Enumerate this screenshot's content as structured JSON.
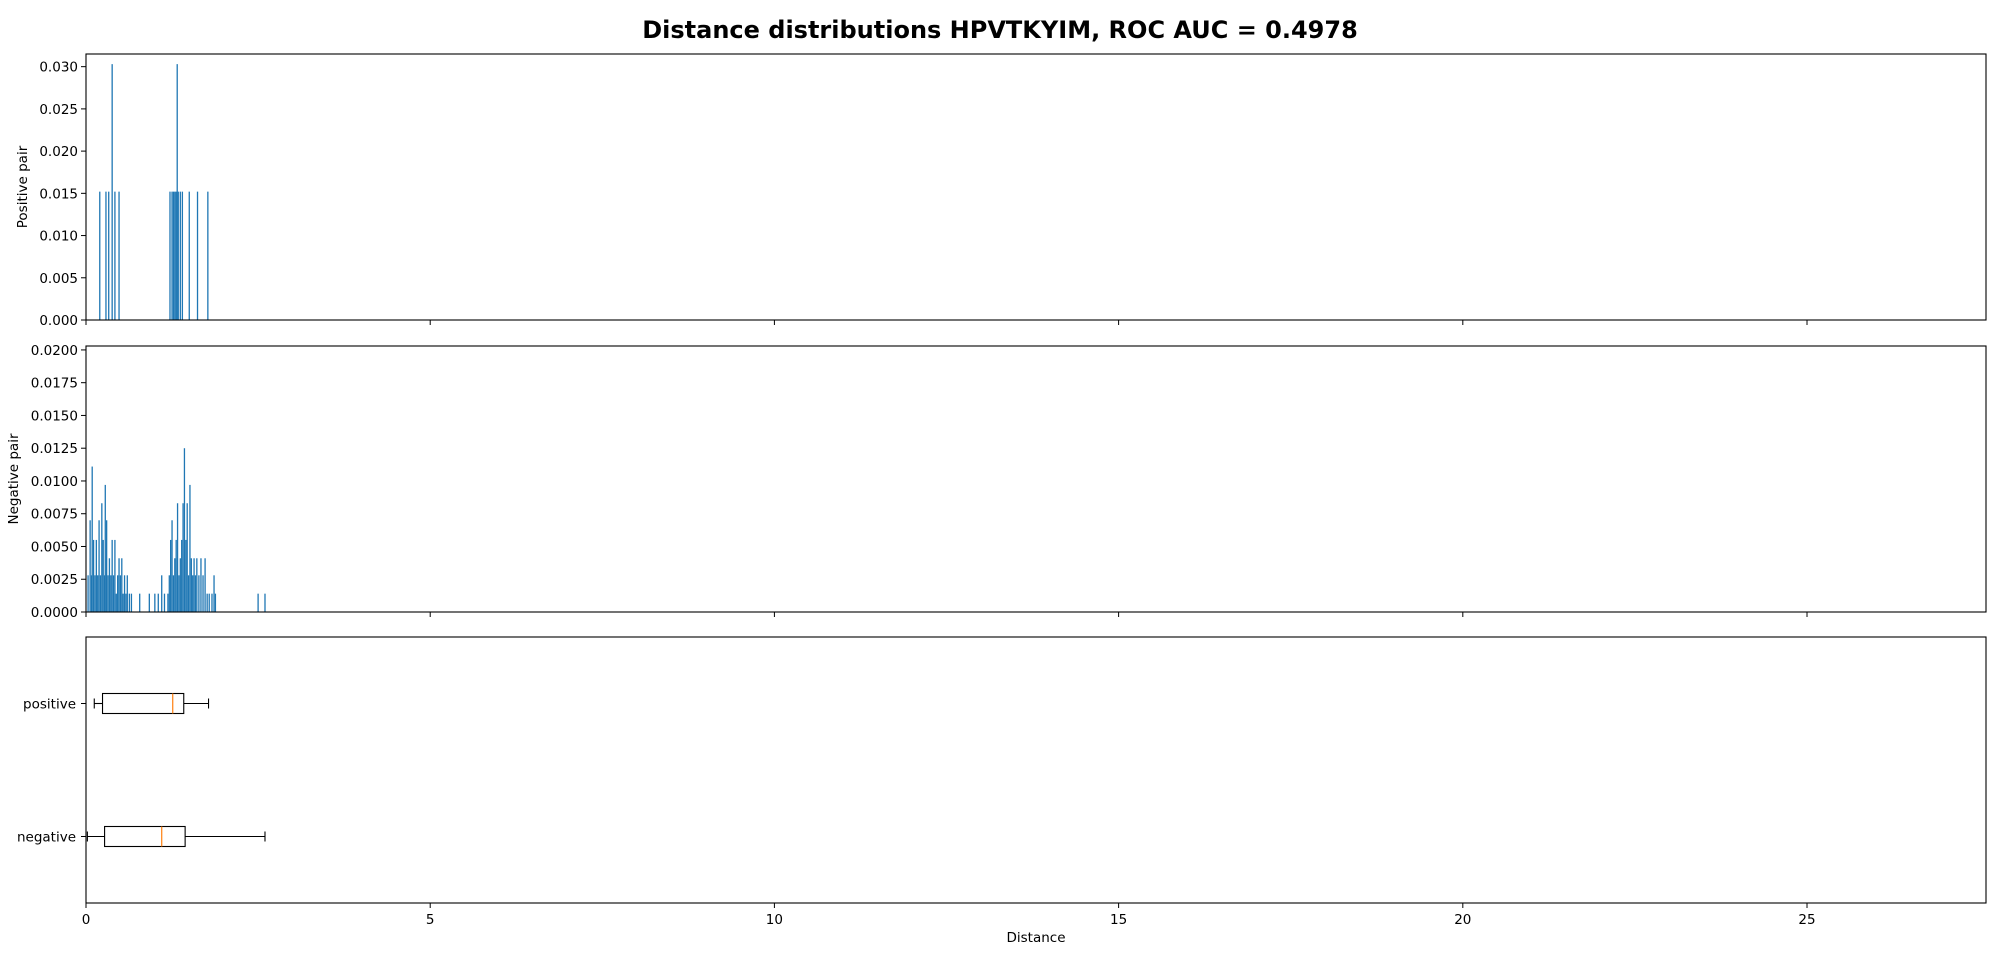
{
  "chart_data": [
    {
      "type": "bar",
      "panel": "positive-histogram",
      "title": "Distance distributions HPVTKYIM, ROC AUC = 0.4978",
      "ylabel": "Positive pair",
      "xlim": [
        0,
        27.6
      ],
      "ylim": [
        0,
        0.0315
      ],
      "yticks": [
        "0.000",
        "0.005",
        "0.010",
        "0.015",
        "0.020",
        "0.025",
        "0.030"
      ],
      "bar_color": "#1f77b4",
      "bars": [
        {
          "x": 0.2,
          "y": 0.0152
        },
        {
          "x": 0.29,
          "y": 0.0152
        },
        {
          "x": 0.33,
          "y": 0.0152
        },
        {
          "x": 0.38,
          "y": 0.0303
        },
        {
          "x": 0.42,
          "y": 0.0152
        },
        {
          "x": 0.48,
          "y": 0.0152
        },
        {
          "x": 1.22,
          "y": 0.0152
        },
        {
          "x": 1.25,
          "y": 0.0152
        },
        {
          "x": 1.27,
          "y": 0.0152
        },
        {
          "x": 1.29,
          "y": 0.0152
        },
        {
          "x": 1.31,
          "y": 0.0152
        },
        {
          "x": 1.325,
          "y": 0.0303
        },
        {
          "x": 1.34,
          "y": 0.0152
        },
        {
          "x": 1.37,
          "y": 0.0152
        },
        {
          "x": 1.4,
          "y": 0.0152
        },
        {
          "x": 1.5,
          "y": 0.0152
        },
        {
          "x": 1.62,
          "y": 0.0152
        },
        {
          "x": 1.77,
          "y": 0.0152
        }
      ]
    },
    {
      "type": "bar",
      "panel": "negative-histogram",
      "ylabel": "Negative pair",
      "xlim": [
        0,
        27.6
      ],
      "ylim": [
        0,
        0.0203
      ],
      "yticks": [
        "0.0000",
        "0.0025",
        "0.0050",
        "0.0075",
        "0.0100",
        "0.0125",
        "0.0150",
        "0.0175",
        "0.0200"
      ],
      "bar_color": "#1f77b4",
      "bars": [
        {
          "x": 0.03,
          "y": 0.0028
        },
        {
          "x": 0.06,
          "y": 0.007
        },
        {
          "x": 0.08,
          "y": 0.0028
        },
        {
          "x": 0.09,
          "y": 0.0111
        },
        {
          "x": 0.11,
          "y": 0.0055
        },
        {
          "x": 0.13,
          "y": 0.0028
        },
        {
          "x": 0.15,
          "y": 0.0055
        },
        {
          "x": 0.17,
          "y": 0.0028
        },
        {
          "x": 0.19,
          "y": 0.007
        },
        {
          "x": 0.21,
          "y": 0.0028
        },
        {
          "x": 0.23,
          "y": 0.0083
        },
        {
          "x": 0.25,
          "y": 0.0055
        },
        {
          "x": 0.27,
          "y": 0.0028
        },
        {
          "x": 0.28,
          "y": 0.0097
        },
        {
          "x": 0.3,
          "y": 0.007
        },
        {
          "x": 0.32,
          "y": 0.0028
        },
        {
          "x": 0.34,
          "y": 0.0041
        },
        {
          "x": 0.36,
          "y": 0.0028
        },
        {
          "x": 0.38,
          "y": 0.0055
        },
        {
          "x": 0.4,
          "y": 0.0028
        },
        {
          "x": 0.42,
          "y": 0.0055
        },
        {
          "x": 0.44,
          "y": 0.0014
        },
        {
          "x": 0.46,
          "y": 0.0028
        },
        {
          "x": 0.48,
          "y": 0.0041
        },
        {
          "x": 0.5,
          "y": 0.0028
        },
        {
          "x": 0.52,
          "y": 0.0041
        },
        {
          "x": 0.54,
          "y": 0.0014
        },
        {
          "x": 0.56,
          "y": 0.0028
        },
        {
          "x": 0.58,
          "y": 0.0014
        },
        {
          "x": 0.6,
          "y": 0.0028
        },
        {
          "x": 0.63,
          "y": 0.0014
        },
        {
          "x": 0.66,
          "y": 0.0014
        },
        {
          "x": 0.78,
          "y": 0.0014
        },
        {
          "x": 0.92,
          "y": 0.0014
        },
        {
          "x": 1.0,
          "y": 0.0014
        },
        {
          "x": 1.05,
          "y": 0.0014
        },
        {
          "x": 1.1,
          "y": 0.0028
        },
        {
          "x": 1.14,
          "y": 0.0014
        },
        {
          "x": 1.19,
          "y": 0.0014
        },
        {
          "x": 1.21,
          "y": 0.0028
        },
        {
          "x": 1.23,
          "y": 0.0055
        },
        {
          "x": 1.25,
          "y": 0.007
        },
        {
          "x": 1.27,
          "y": 0.0028
        },
        {
          "x": 1.29,
          "y": 0.0041
        },
        {
          "x": 1.31,
          "y": 0.0055
        },
        {
          "x": 1.33,
          "y": 0.0083
        },
        {
          "x": 1.35,
          "y": 0.0028
        },
        {
          "x": 1.37,
          "y": 0.0041
        },
        {
          "x": 1.39,
          "y": 0.0055
        },
        {
          "x": 1.41,
          "y": 0.0083
        },
        {
          "x": 1.43,
          "y": 0.0125
        },
        {
          "x": 1.45,
          "y": 0.0055
        },
        {
          "x": 1.47,
          "y": 0.0083
        },
        {
          "x": 1.49,
          "y": 0.0028
        },
        {
          "x": 1.51,
          "y": 0.0097
        },
        {
          "x": 1.53,
          "y": 0.0041
        },
        {
          "x": 1.55,
          "y": 0.0028
        },
        {
          "x": 1.57,
          "y": 0.0041
        },
        {
          "x": 1.59,
          "y": 0.0028
        },
        {
          "x": 1.61,
          "y": 0.0041
        },
        {
          "x": 1.64,
          "y": 0.0028
        },
        {
          "x": 1.67,
          "y": 0.0041
        },
        {
          "x": 1.7,
          "y": 0.0028
        },
        {
          "x": 1.73,
          "y": 0.0041
        },
        {
          "x": 1.76,
          "y": 0.0014
        },
        {
          "x": 1.79,
          "y": 0.0014
        },
        {
          "x": 1.83,
          "y": 0.0014
        },
        {
          "x": 1.86,
          "y": 0.0028
        },
        {
          "x": 1.88,
          "y": 0.0014
        },
        {
          "x": 2.5,
          "y": 0.0014
        },
        {
          "x": 2.6,
          "y": 0.0014
        }
      ]
    },
    {
      "type": "box",
      "panel": "boxplots",
      "xlabel": "Distance",
      "xlim": [
        0,
        27.6
      ],
      "xticks": [
        "0",
        "5",
        "10",
        "15",
        "20",
        "25"
      ],
      "box_color": "#000000",
      "median_color": "#ff7f0e",
      "series": [
        {
          "name": "positive",
          "whisker_low": 0.12,
          "q1": 0.24,
          "median": 1.26,
          "q3": 1.42,
          "whisker_high": 1.78
        },
        {
          "name": "negative",
          "whisker_low": 0.02,
          "q1": 0.27,
          "median": 1.1,
          "q3": 1.44,
          "whisker_high": 2.6
        }
      ]
    }
  ]
}
